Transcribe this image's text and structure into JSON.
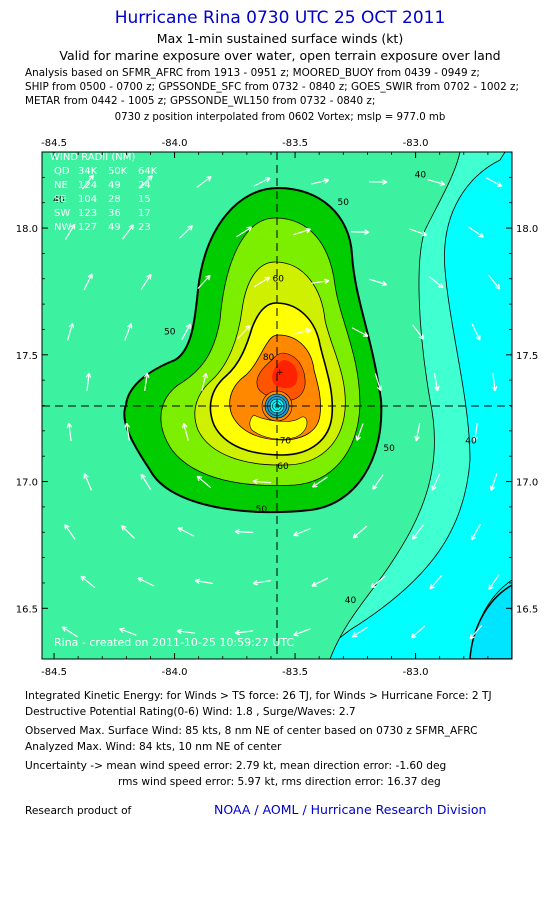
{
  "header": {
    "title": "Hurricane Rina 0730 UTC 25 OCT 2011",
    "subtitle1": "Max 1-min sustained surface winds (kt)",
    "subtitle2": "Valid for marine exposure over water, open terrain exposure over land",
    "analysis_lines": [
      "Analysis based on SFMR_AFRC from 1913 - 0951 z; MOORED_BUOY from 0439 - 0949 z;",
      "SHIP from 0500 - 0700 z; GPSSONDE_SFC from 0732 - 0840 z; GOES_SWIR from 0702 - 1002 z;",
      "METAR from 0442 - 1005 z; GPSSONDE_WL150 from 0732 - 0840 z;"
    ],
    "vortex_line": "0730 z position interpolated from 0602 Vortex; mslp = 977.0 mb"
  },
  "chart_data": {
    "type": "contour",
    "x_ticks": [
      "-84.5",
      "-84.0",
      "-83.5",
      "-83.0"
    ],
    "y_ticks": [
      "18.0",
      "17.5",
      "17.0",
      "16.5"
    ],
    "xlim": [
      -84.55,
      -82.6
    ],
    "ylim": [
      16.3,
      18.3
    ],
    "center": {
      "lon": -83.5,
      "lat": 17.3
    },
    "contour_levels": [
      30,
      40,
      50,
      60,
      70,
      80
    ],
    "contour_labels": [
      {
        "text": "40",
        "lon": -84.48,
        "lat": 18.1
      },
      {
        "text": "40",
        "lon": -82.98,
        "lat": 18.2
      },
      {
        "text": "40",
        "lon": -82.77,
        "lat": 17.15
      },
      {
        "text": "40",
        "lon": -83.27,
        "lat": 16.52
      },
      {
        "text": "50",
        "lon": -83.3,
        "lat": 18.09
      },
      {
        "text": "50",
        "lon": -84.02,
        "lat": 17.58
      },
      {
        "text": "50",
        "lon": -83.11,
        "lat": 17.12
      },
      {
        "text": "50",
        "lon": -83.64,
        "lat": 16.88
      },
      {
        "text": "60",
        "lon": -83.57,
        "lat": 17.79
      },
      {
        "text": "60",
        "lon": -83.55,
        "lat": 17.05
      },
      {
        "text": "70",
        "lon": -83.54,
        "lat": 17.15
      },
      {
        "text": "80",
        "lon": -83.61,
        "lat": 17.48
      }
    ],
    "wind_radii": {
      "title": "WIND RADII (NM)",
      "header": [
        "QD",
        "34K",
        "50K",
        "64K"
      ],
      "rows": [
        [
          "NE",
          "124",
          "49",
          "24"
        ],
        [
          "SE",
          "104",
          "28",
          "15"
        ],
        [
          "SW",
          "123",
          "36",
          "17"
        ],
        [
          "NW",
          "127",
          "49",
          "23"
        ]
      ]
    },
    "watermark": "Rina - created on 2011-10-25 10:59:27 UTC",
    "colors": {
      "cyan": "#00ffff",
      "c30": "#40ffd0",
      "c40": "#3cf2a0",
      "c50": "#00cc00",
      "c55": "#7cee00",
      "c60": "#cff000",
      "c70": "#ffff00",
      "c80": "#ff8800",
      "c90": "#ff3300",
      "eye": "#1e9fd0"
    }
  },
  "footer": {
    "lines": [
      "Integrated Kinetic Energy:  for Winds > TS force: 26 TJ,  for Winds > Hurricane Force: 2 TJ",
      "Destructive Potential Rating(0-6)   Wind:  1.8 , Surge/Waves: 2.7",
      "Observed Max. Surface Wind: 85 kts, 8 nm NE of center based on 0730 z SFMR_AFRC",
      "Analyzed Max. Wind: 84 kts, 10 nm NE of center",
      "Uncertainty -> mean wind speed error: 2.79 kt,   mean direction error:  -1.60 deg",
      "rms wind speed error: 5.97 kt,   rms direction error: 16.37 deg"
    ],
    "research": "Research product of",
    "org": "NOAA / AOML / Hurricane Research Division"
  }
}
